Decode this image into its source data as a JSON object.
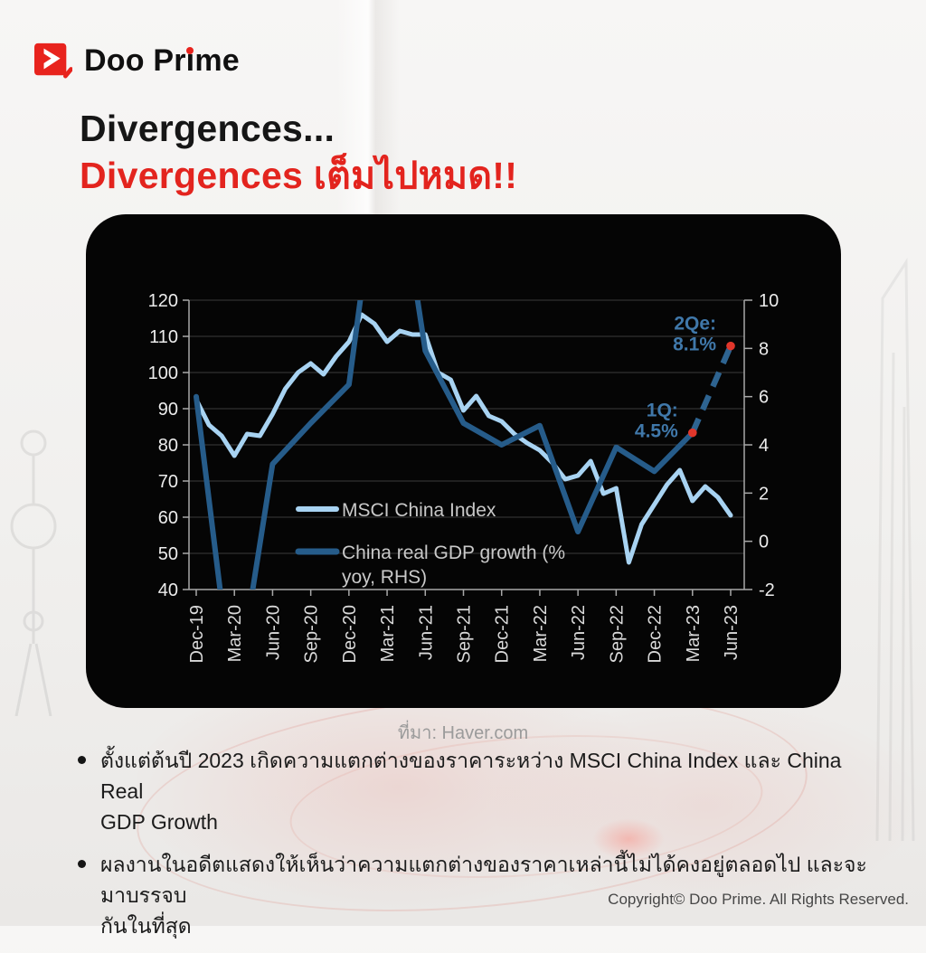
{
  "header": {
    "brand": "Doo Prime",
    "brand_pre": "Doo Pr",
    "brand_i": "ı",
    "brand_post": "me",
    "logo_red": "#e8231d"
  },
  "title": {
    "line1": "Divergences...",
    "line2": "Divergences เต็มไปหมด!!",
    "accent_color": "#e3241e"
  },
  "chart_data": {
    "type": "line",
    "background": "#050505",
    "grid": true,
    "x_tick_labels": [
      "Dec-19",
      "Mar-20",
      "Jun-20",
      "Sep-20",
      "Dec-20",
      "Mar-21",
      "Jun-21",
      "Sep-21",
      "Dec-21",
      "Mar-22",
      "Jun-22",
      "Sep-22",
      "Dec-22",
      "Mar-23",
      "Jun-23"
    ],
    "left_axis": {
      "min": 40,
      "max": 120,
      "ticks": [
        120,
        110,
        100,
        90,
        80,
        70,
        60,
        50,
        40
      ]
    },
    "right_axis": {
      "min": -2,
      "max": 10,
      "ticks": [
        10,
        8,
        6,
        4,
        2,
        0,
        -2
      ]
    },
    "series": [
      {
        "name": "MSCI China Index",
        "axis": "left",
        "frequency": "monthly",
        "color": "#a8d3f2",
        "width": 5,
        "values": [
          92.5,
          85.5,
          82.5,
          77,
          83,
          82.5,
          88.5,
          95.5,
          100,
          102.5,
          99.5,
          104.5,
          108.5,
          116,
          113.5,
          108.5,
          111.5,
          110.5,
          110.5,
          100,
          98,
          89.5,
          93.5,
          88,
          86.5,
          83,
          80.5,
          78.5,
          75,
          70.5,
          71.5,
          75.5,
          66.5,
          68,
          47.5,
          58,
          63.5,
          69,
          73,
          64.5,
          68.5,
          65.5,
          60.5
        ]
      },
      {
        "name": "China real GDP growth (% yoy, RHS)",
        "axis": "right",
        "frequency": "quarterly",
        "color": "#265c8a",
        "width": 6,
        "values": [
          6.0,
          -6.8,
          3.2,
          4.9,
          6.5,
          18.3,
          7.9,
          4.9,
          4.0,
          4.8,
          0.4,
          3.9,
          2.9,
          4.5
        ]
      }
    ],
    "forecast": {
      "style": "dashed",
      "color": "#2e6491",
      "from": {
        "x": "Mar-23",
        "value": 4.5
      },
      "to": {
        "x": "Jun-23",
        "value": 8.1
      }
    },
    "markers": [
      {
        "x": "Mar-23",
        "value": 4.5,
        "color": "#e0362b"
      },
      {
        "x": "Jun-23",
        "value": 8.1,
        "color": "#e0362b"
      }
    ],
    "annotations": [
      {
        "line1": "1Q:",
        "line2": "4.5%",
        "x": "Mar-23",
        "value": 4.5
      },
      {
        "line1": "2Qe:",
        "line2": "8.1%",
        "x": "Jun-23",
        "value": 8.1
      }
    ],
    "legend": [
      {
        "label": "MSCI China Index",
        "lines": [
          "MSCI China Index"
        ],
        "color": "#a8d3f2"
      },
      {
        "label": "China real GDP growth (% yoy, RHS)",
        "lines": [
          "China real GDP growth (%",
          "yoy, RHS)"
        ],
        "color": "#265c8a"
      }
    ],
    "legend_position": "inside-left-bottom"
  },
  "source": "ที่มา: Haver.com",
  "bullets": [
    {
      "line1": "ตั้งแต่ต้นปี 2023 เกิดความแตกต่างของราคาระหว่าง MSCI China Index และ China Real",
      "line2": "GDP Growth"
    },
    {
      "line1": "ผลงานในอดีตแสดงให้เห็นว่าความแตกต่างของราคาเหล่านี้ไม่ได้คงอยู่ตลอดไป และจะมาบรรจบ",
      "line2": "กันในที่สุด"
    }
  ],
  "footer": {
    "copyright": "Copyright© Doo Prime. All Rights Reserved."
  }
}
